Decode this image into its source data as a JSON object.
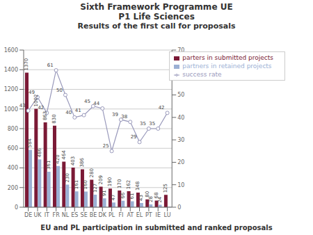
{
  "chart_data": {
    "type": "bar",
    "title": [
      "Sixth Framework Programme UE",
      "P1 Life Sciences",
      "Results of the first call for proposals"
    ],
    "annotations": [
      "EU and PL participation in submitted and ranked proposals"
    ],
    "categories": [
      "DE",
      "UK",
      "IT",
      "FR",
      "NL",
      "ES",
      "SE",
      "BE",
      "DK",
      "PL",
      "FI",
      "AT",
      "EL",
      "PT",
      "IE",
      "LU"
    ],
    "series": [
      {
        "name": "parters in submitted projects",
        "type": "bar",
        "color": "#7B1A36",
        "values": [
          1370,
          1002,
          863,
          830,
          464,
          403,
          386,
          280,
          209,
          190,
          170,
          162,
          148,
          80,
          68,
          125
        ]
      },
      {
        "name": "partners in retained projects",
        "type": "bar",
        "color": "#9BB0D4",
        "values": [
          584,
          486,
          361,
          420,
          230,
          161,
          160,
          127,
          91,
          47,
          66,
          61,
          43,
          28,
          24,
          4
        ],
        "value_labels": [
          "584",
          "486",
          "361",
          "420",
          "230",
          "161",
          "160",
          "127",
          "91",
          "47",
          "66",
          "61",
          "43",
          "28",
          "24",
          null
        ]
      },
      {
        "name": "success rate",
        "type": "line",
        "axis": "y2",
        "color": "#9999BB",
        "marker": "circle",
        "line_style": "solid",
        "values": [
          43,
          49,
          42,
          61,
          50,
          40,
          41,
          45,
          44,
          25,
          39,
          38,
          29,
          35,
          35,
          42
        ]
      }
    ],
    "ylim": [
      0,
      1600
    ],
    "yticks": [
      0,
      200,
      400,
      600,
      800,
      1000,
      1200,
      1400,
      1600
    ],
    "y2lim": [
      0,
      70
    ],
    "y2ticks": [
      0,
      10,
      20,
      30,
      40,
      50,
      60,
      70
    ],
    "grid": true,
    "legend": "upper right",
    "data_labels": true
  }
}
